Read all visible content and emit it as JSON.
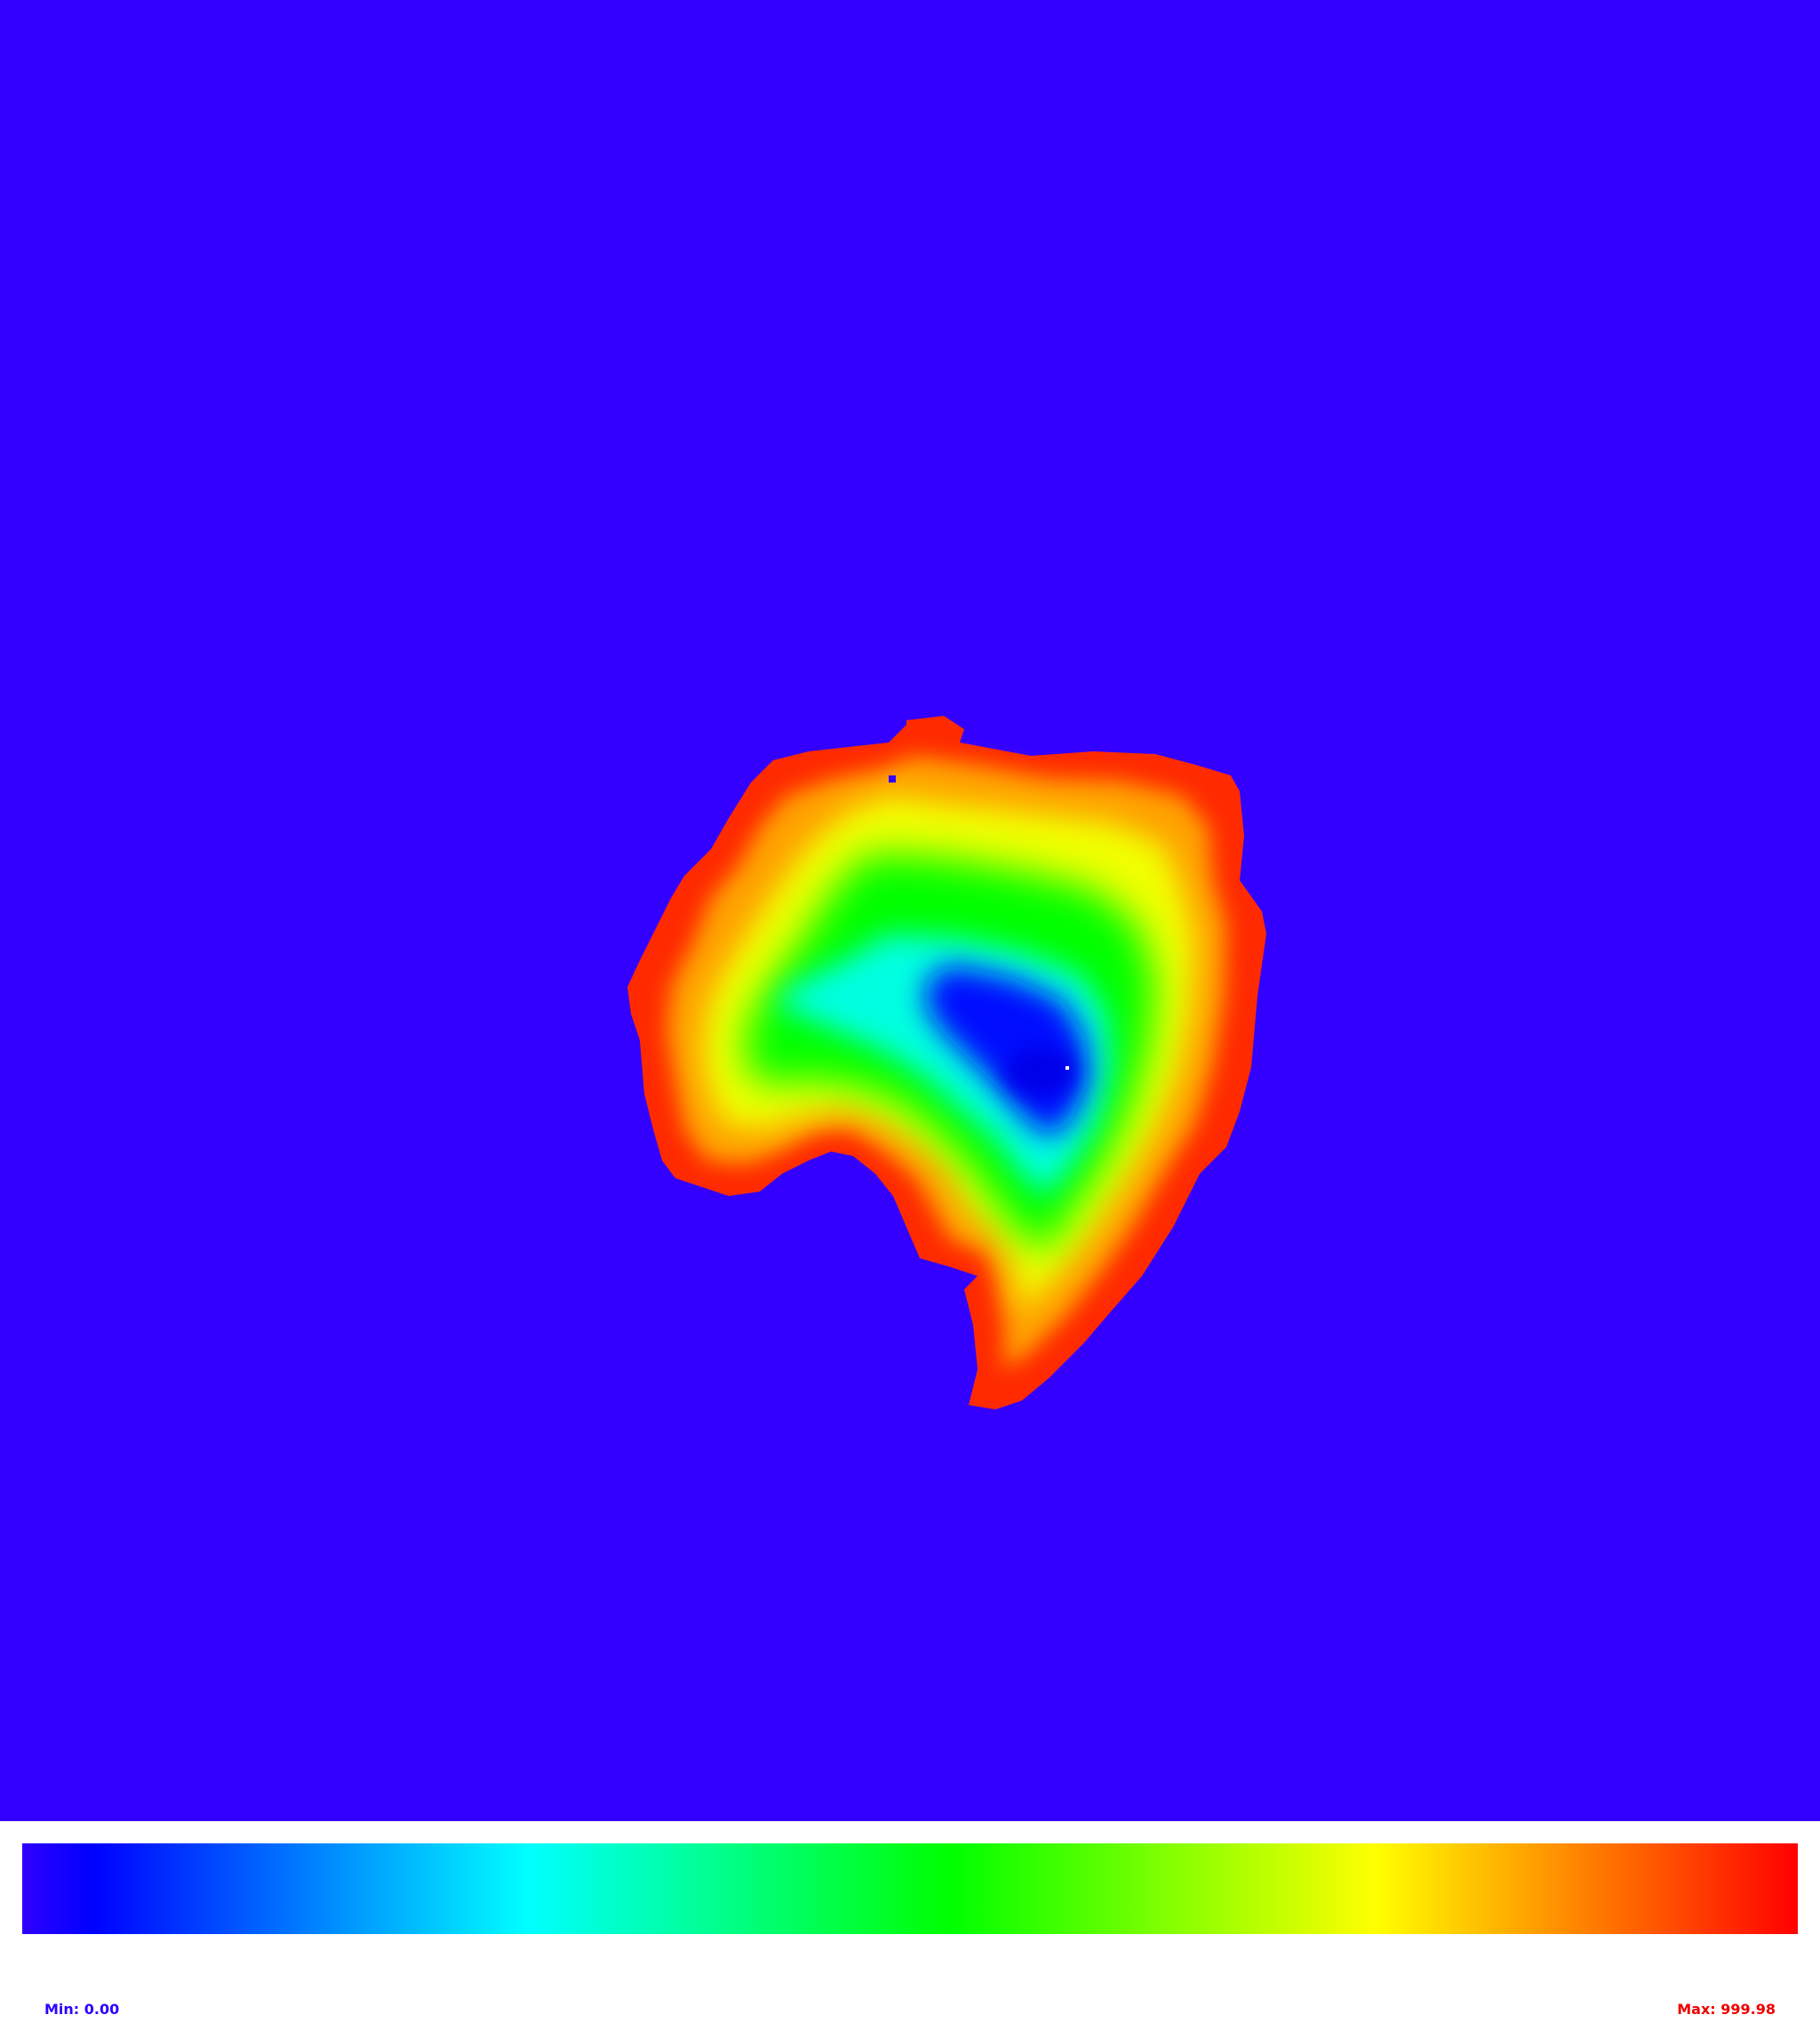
{
  "colormap": {
    "background_color": "#3300ff",
    "marker_color": "#ffffff",
    "stops": [
      "#3000ff",
      "#0000ff",
      "#00ffff",
      "#00ff00",
      "#ffff00",
      "#ff0000"
    ]
  },
  "legend": {
    "min_label": "Min: 0.00",
    "max_label": "Max: 999.98"
  }
}
